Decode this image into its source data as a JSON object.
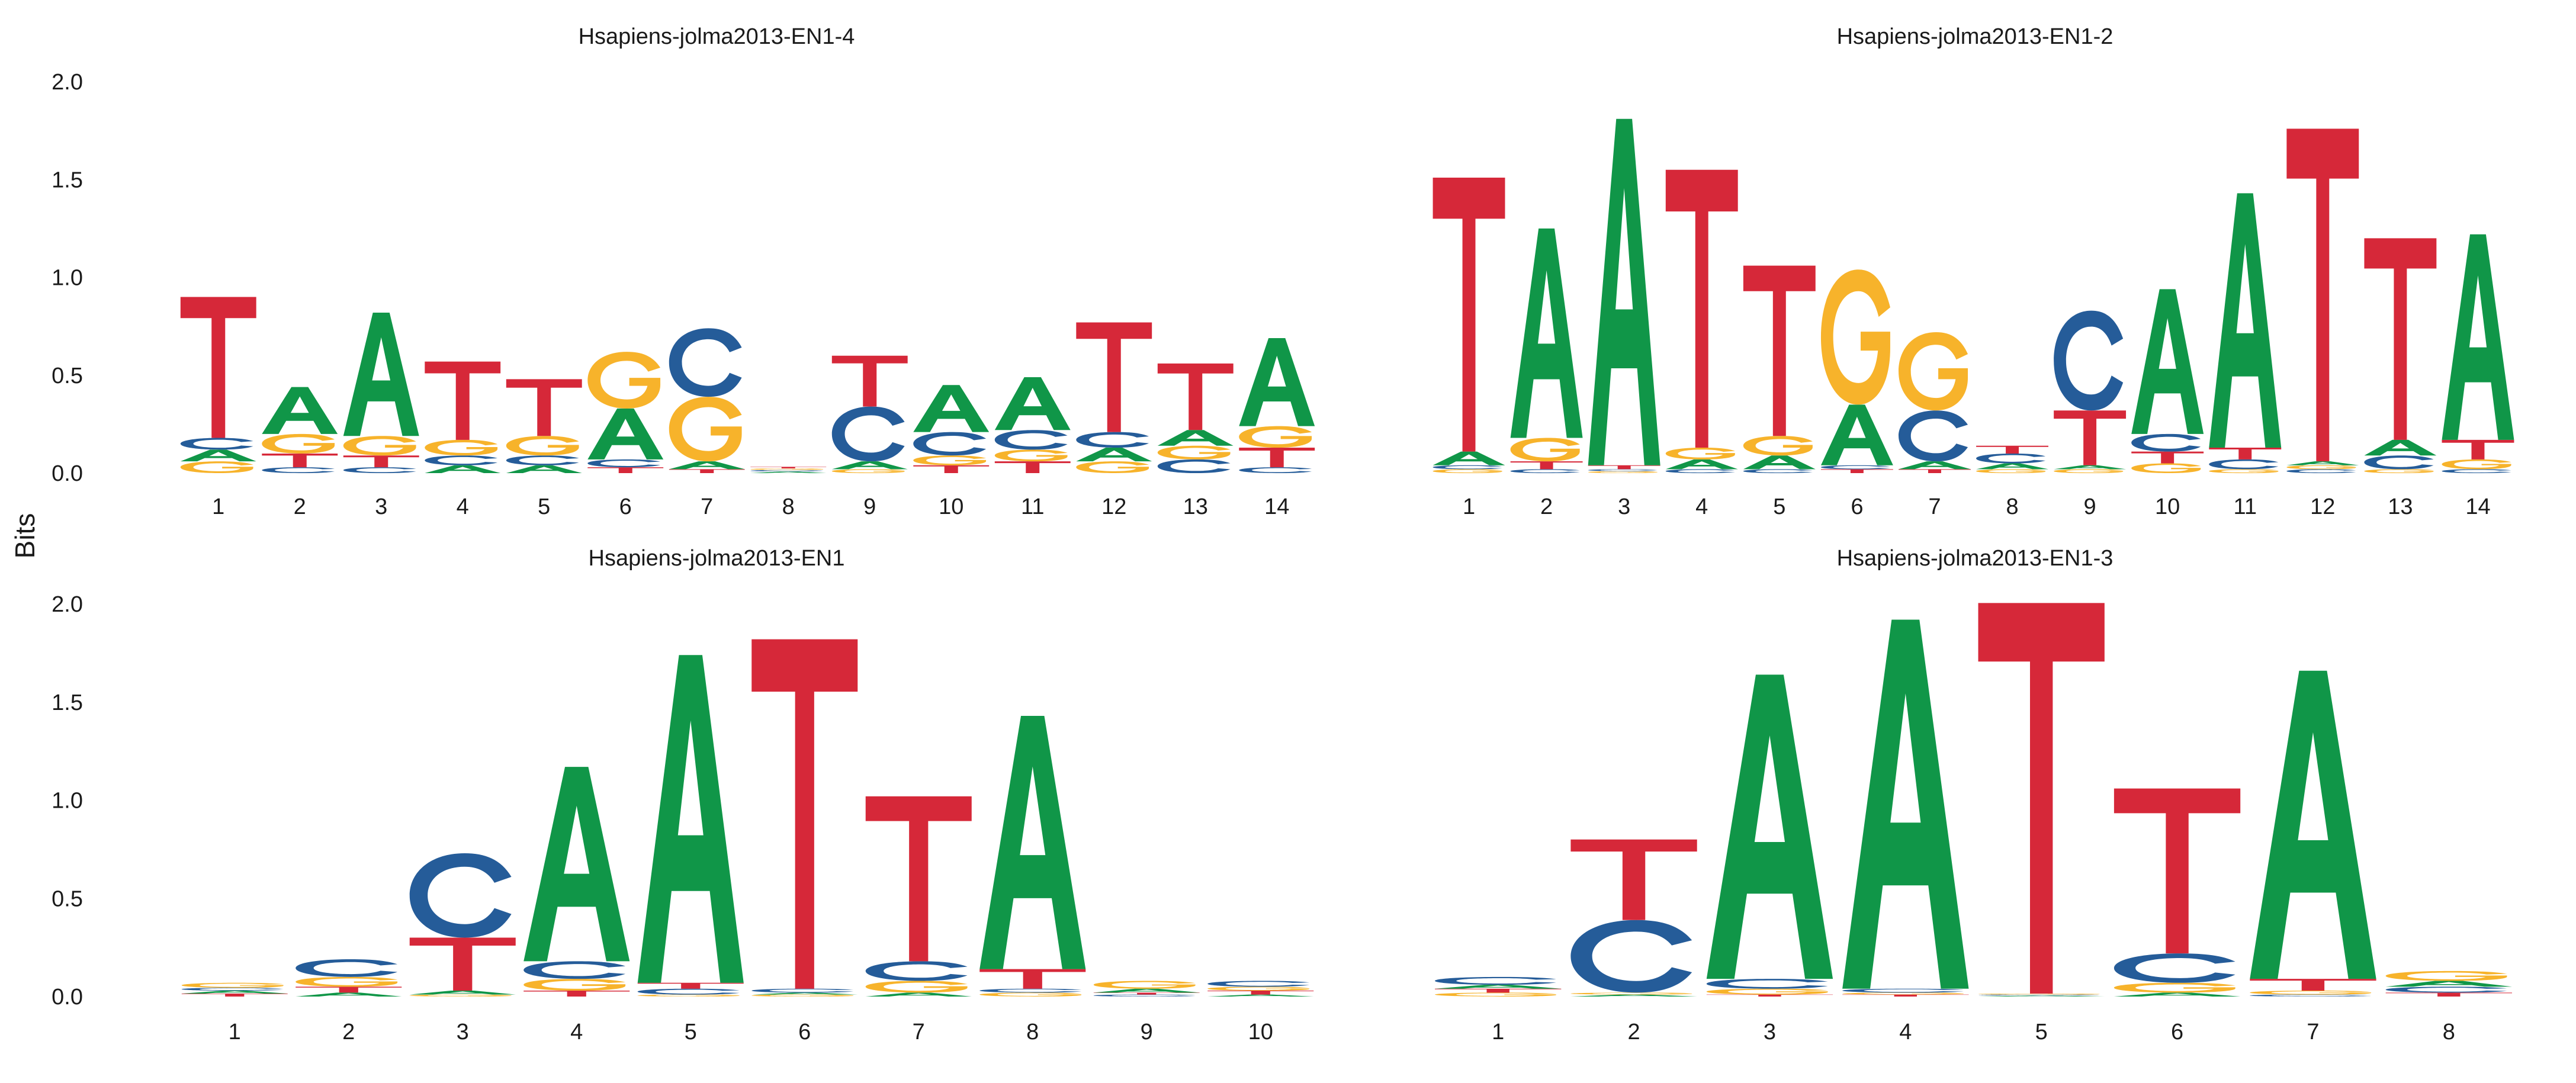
{
  "figure": {
    "ylabel": "Bits",
    "xlabel": ""
  },
  "colors": {
    "A": "#109648",
    "C": "#255C99",
    "G": "#F7B32B",
    "T": "#D62839"
  },
  "chart_data": [
    {
      "type": "sequence-logo",
      "title": "Hsapiens-jolma2013-EN1-4",
      "ylim": [
        0,
        2.0
      ],
      "yticks": [
        "0.0",
        "0.5",
        "1.0",
        "1.5",
        "2.0"
      ],
      "positions": [
        "1",
        "2",
        "3",
        "4",
        "5",
        "6",
        "7",
        "8",
        "9",
        "10",
        "11",
        "12",
        "13",
        "14"
      ],
      "stacks": [
        [
          {
            "letter": "G",
            "height": 0.06
          },
          {
            "letter": "A",
            "height": 0.06
          },
          {
            "letter": "C",
            "height": 0.06
          },
          {
            "letter": "T",
            "height": 0.72
          }
        ],
        [
          {
            "letter": "C",
            "height": 0.03
          },
          {
            "letter": "T",
            "height": 0.07
          },
          {
            "letter": "G",
            "height": 0.1
          },
          {
            "letter": "A",
            "height": 0.24
          }
        ],
        [
          {
            "letter": "C",
            "height": 0.03
          },
          {
            "letter": "T",
            "height": 0.06
          },
          {
            "letter": "G",
            "height": 0.1
          },
          {
            "letter": "A",
            "height": 0.63
          }
        ],
        [
          {
            "letter": "A",
            "height": 0.04
          },
          {
            "letter": "C",
            "height": 0.05
          },
          {
            "letter": "G",
            "height": 0.08
          },
          {
            "letter": "T",
            "height": 0.4
          }
        ],
        [
          {
            "letter": "A",
            "height": 0.04
          },
          {
            "letter": "C",
            "height": 0.05
          },
          {
            "letter": "G",
            "height": 0.1
          },
          {
            "letter": "T",
            "height": 0.29
          }
        ],
        [
          {
            "letter": "T",
            "height": 0.03
          },
          {
            "letter": "C",
            "height": 0.04
          },
          {
            "letter": "A",
            "height": 0.26
          },
          {
            "letter": "G",
            "height": 0.29
          }
        ],
        [
          {
            "letter": "T",
            "height": 0.02
          },
          {
            "letter": "A",
            "height": 0.04
          },
          {
            "letter": "G",
            "height": 0.33
          },
          {
            "letter": "C",
            "height": 0.35
          }
        ],
        [
          {
            "letter": "A",
            "height": 0.008
          },
          {
            "letter": "C",
            "height": 0.008
          },
          {
            "letter": "G",
            "height": 0.008
          },
          {
            "letter": "T",
            "height": 0.008
          }
        ],
        [
          {
            "letter": "G",
            "height": 0.02
          },
          {
            "letter": "A",
            "height": 0.04
          },
          {
            "letter": "C",
            "height": 0.28
          },
          {
            "letter": "T",
            "height": 0.26
          }
        ],
        [
          {
            "letter": "T",
            "height": 0.04
          },
          {
            "letter": "G",
            "height": 0.05
          },
          {
            "letter": "C",
            "height": 0.12
          },
          {
            "letter": "A",
            "height": 0.24
          }
        ],
        [
          {
            "letter": "T",
            "height": 0.06
          },
          {
            "letter": "G",
            "height": 0.06
          },
          {
            "letter": "C",
            "height": 0.1
          },
          {
            "letter": "A",
            "height": 0.27
          }
        ],
        [
          {
            "letter": "G",
            "height": 0.06
          },
          {
            "letter": "A",
            "height": 0.07
          },
          {
            "letter": "C",
            "height": 0.08
          },
          {
            "letter": "T",
            "height": 0.56
          }
        ],
        [
          {
            "letter": "C",
            "height": 0.07
          },
          {
            "letter": "G",
            "height": 0.07
          },
          {
            "letter": "A",
            "height": 0.08
          },
          {
            "letter": "T",
            "height": 0.34
          }
        ],
        [
          {
            "letter": "C",
            "height": 0.03
          },
          {
            "letter": "T",
            "height": 0.1
          },
          {
            "letter": "G",
            "height": 0.11
          },
          {
            "letter": "A",
            "height": 0.45
          }
        ]
      ]
    },
    {
      "type": "sequence-logo",
      "title": "Hsapiens-jolma2013-EN1-2",
      "ylim": [
        0,
        2.0
      ],
      "yticks": [
        "0.0",
        "0.5",
        "1.0",
        "1.5",
        "2.0"
      ],
      "positions": [
        "1",
        "2",
        "3",
        "4",
        "5",
        "6",
        "7",
        "8",
        "9",
        "10",
        "11",
        "12",
        "13",
        "14"
      ],
      "stacks": [
        [
          {
            "letter": "G",
            "height": 0.02
          },
          {
            "letter": "C",
            "height": 0.02
          },
          {
            "letter": "A",
            "height": 0.07
          },
          {
            "letter": "T",
            "height": 1.4
          }
        ],
        [
          {
            "letter": "C",
            "height": 0.02
          },
          {
            "letter": "T",
            "height": 0.04
          },
          {
            "letter": "G",
            "height": 0.12
          },
          {
            "letter": "A",
            "height": 1.07
          }
        ],
        [
          {
            "letter": "G",
            "height": 0.01
          },
          {
            "letter": "C",
            "height": 0.01
          },
          {
            "letter": "T",
            "height": 0.02
          },
          {
            "letter": "A",
            "height": 1.77
          }
        ],
        [
          {
            "letter": "C",
            "height": 0.02
          },
          {
            "letter": "A",
            "height": 0.05
          },
          {
            "letter": "G",
            "height": 0.06
          },
          {
            "letter": "T",
            "height": 1.42
          }
        ],
        [
          {
            "letter": "C",
            "height": 0.02
          },
          {
            "letter": "A",
            "height": 0.07
          },
          {
            "letter": "G",
            "height": 0.1
          },
          {
            "letter": "T",
            "height": 0.87
          }
        ],
        [
          {
            "letter": "T",
            "height": 0.02
          },
          {
            "letter": "C",
            "height": 0.02
          },
          {
            "letter": "A",
            "height": 0.31
          },
          {
            "letter": "G",
            "height": 0.69
          }
        ],
        [
          {
            "letter": "T",
            "height": 0.02
          },
          {
            "letter": "A",
            "height": 0.04
          },
          {
            "letter": "C",
            "height": 0.26
          },
          {
            "letter": "G",
            "height": 0.4
          }
        ],
        [
          {
            "letter": "G",
            "height": 0.02
          },
          {
            "letter": "A",
            "height": 0.03
          },
          {
            "letter": "C",
            "height": 0.05
          },
          {
            "letter": "T",
            "height": 0.04
          }
        ],
        [
          {
            "letter": "G",
            "height": 0.02
          },
          {
            "letter": "A",
            "height": 0.02
          },
          {
            "letter": "T",
            "height": 0.28
          },
          {
            "letter": "C",
            "height": 0.51
          }
        ],
        [
          {
            "letter": "G",
            "height": 0.05
          },
          {
            "letter": "T",
            "height": 0.06
          },
          {
            "letter": "C",
            "height": 0.09
          },
          {
            "letter": "A",
            "height": 0.74
          }
        ],
        [
          {
            "letter": "G",
            "height": 0.02
          },
          {
            "letter": "C",
            "height": 0.05
          },
          {
            "letter": "T",
            "height": 0.06
          },
          {
            "letter": "A",
            "height": 1.3
          }
        ],
        [
          {
            "letter": "C",
            "height": 0.02
          },
          {
            "letter": "G",
            "height": 0.02
          },
          {
            "letter": "A",
            "height": 0.02
          },
          {
            "letter": "T",
            "height": 1.7
          }
        ],
        [
          {
            "letter": "G",
            "height": 0.02
          },
          {
            "letter": "C",
            "height": 0.07
          },
          {
            "letter": "A",
            "height": 0.08
          },
          {
            "letter": "T",
            "height": 1.03
          }
        ],
        [
          {
            "letter": "C",
            "height": 0.02
          },
          {
            "letter": "G",
            "height": 0.05
          },
          {
            "letter": "T",
            "height": 0.1
          },
          {
            "letter": "A",
            "height": 1.05
          }
        ]
      ]
    },
    {
      "type": "sequence-logo",
      "title": "Hsapiens-jolma2013-EN1",
      "ylim": [
        0,
        2.0
      ],
      "yticks": [
        "0.0",
        "0.5",
        "1.0",
        "1.5",
        "2.0"
      ],
      "positions": [
        "1",
        "2",
        "3",
        "4",
        "5",
        "6",
        "7",
        "8",
        "9",
        "10"
      ],
      "stacks": [
        [
          {
            "letter": "T",
            "height": 0.015
          },
          {
            "letter": "A",
            "height": 0.015
          },
          {
            "letter": "C",
            "height": 0.015
          },
          {
            "letter": "G",
            "height": 0.025
          }
        ],
        [
          {
            "letter": "A",
            "height": 0.02
          },
          {
            "letter": "T",
            "height": 0.03
          },
          {
            "letter": "G",
            "height": 0.05
          },
          {
            "letter": "C",
            "height": 0.09
          }
        ],
        [
          {
            "letter": "G",
            "height": 0.01
          },
          {
            "letter": "A",
            "height": 0.02
          },
          {
            "letter": "T",
            "height": 0.27
          },
          {
            "letter": "C",
            "height": 0.43
          }
        ],
        [
          {
            "letter": "T",
            "height": 0.03
          },
          {
            "letter": "G",
            "height": 0.06
          },
          {
            "letter": "C",
            "height": 0.09
          },
          {
            "letter": "A",
            "height": 0.99
          }
        ],
        [
          {
            "letter": "G",
            "height": 0.01
          },
          {
            "letter": "C",
            "height": 0.03
          },
          {
            "letter": "T",
            "height": 0.03
          },
          {
            "letter": "A",
            "height": 1.67
          }
        ],
        [
          {
            "letter": "G",
            "height": 0.01
          },
          {
            "letter": "A",
            "height": 0.01
          },
          {
            "letter": "C",
            "height": 0.02
          },
          {
            "letter": "T",
            "height": 1.78
          }
        ],
        [
          {
            "letter": "A",
            "height": 0.02
          },
          {
            "letter": "G",
            "height": 0.06
          },
          {
            "letter": "C",
            "height": 0.1
          },
          {
            "letter": "T",
            "height": 0.84
          }
        ],
        [
          {
            "letter": "G",
            "height": 0.02
          },
          {
            "letter": "C",
            "height": 0.02
          },
          {
            "letter": "T",
            "height": 0.1
          },
          {
            "letter": "A",
            "height": 1.29
          }
        ],
        [
          {
            "letter": "C",
            "height": 0.01
          },
          {
            "letter": "T",
            "height": 0.01
          },
          {
            "letter": "A",
            "height": 0.02
          },
          {
            "letter": "G",
            "height": 0.04
          }
        ],
        [
          {
            "letter": "A",
            "height": 0.01
          },
          {
            "letter": "T",
            "height": 0.02
          },
          {
            "letter": "G",
            "height": 0.02
          },
          {
            "letter": "C",
            "height": 0.03
          }
        ]
      ]
    },
    {
      "type": "sequence-logo",
      "title": "Hsapiens-jolma2013-EN1-3",
      "ylim": [
        0,
        2.0
      ],
      "yticks": [
        "0.0",
        "0.5",
        "1.0",
        "1.5",
        "2.0"
      ],
      "positions": [
        "1",
        "2",
        "3",
        "4",
        "5",
        "6",
        "7",
        "8"
      ],
      "stacks": [
        [
          {
            "letter": "G",
            "height": 0.02
          },
          {
            "letter": "T",
            "height": 0.02
          },
          {
            "letter": "A",
            "height": 0.02
          },
          {
            "letter": "C",
            "height": 0.04
          }
        ],
        [
          {
            "letter": "A",
            "height": 0.01
          },
          {
            "letter": "G",
            "height": 0.01
          },
          {
            "letter": "C",
            "height": 0.37
          },
          {
            "letter": "T",
            "height": 0.41
          }
        ],
        [
          {
            "letter": "T",
            "height": 0.01
          },
          {
            "letter": "G",
            "height": 0.03
          },
          {
            "letter": "C",
            "height": 0.05
          },
          {
            "letter": "A",
            "height": 1.55
          }
        ],
        [
          {
            "letter": "T",
            "height": 0.01
          },
          {
            "letter": "G",
            "height": 0.01
          },
          {
            "letter": "C",
            "height": 0.02
          },
          {
            "letter": "A",
            "height": 1.88
          }
        ],
        [
          {
            "letter": "A",
            "height": 0.005
          },
          {
            "letter": "C",
            "height": 0.005
          },
          {
            "letter": "G",
            "height": 0.005
          },
          {
            "letter": "T",
            "height": 1.99
          }
        ],
        [
          {
            "letter": "A",
            "height": 0.02
          },
          {
            "letter": "G",
            "height": 0.05
          },
          {
            "letter": "C",
            "height": 0.15
          },
          {
            "letter": "T",
            "height": 0.84
          }
        ],
        [
          {
            "letter": "C",
            "height": 0.01
          },
          {
            "letter": "G",
            "height": 0.02
          },
          {
            "letter": "T",
            "height": 0.06
          },
          {
            "letter": "A",
            "height": 1.57
          }
        ],
        [
          {
            "letter": "T",
            "height": 0.02
          },
          {
            "letter": "C",
            "height": 0.03
          },
          {
            "letter": "A",
            "height": 0.03
          },
          {
            "letter": "G",
            "height": 0.05
          }
        ]
      ]
    }
  ]
}
